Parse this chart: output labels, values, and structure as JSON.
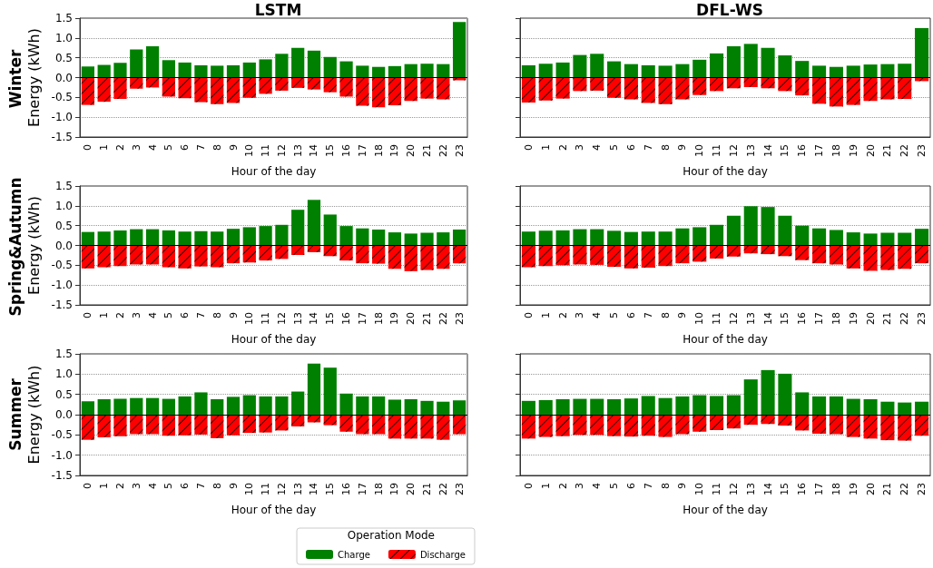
{
  "chart_data": [
    {
      "type": "bar",
      "title": "LSTM",
      "ylabel": "Energy (kWh)",
      "xlabel": "Hour of the day",
      "annotations": [
        "Winter"
      ],
      "stacked": true,
      "grid": "y",
      "categories": [
        "0",
        "1",
        "2",
        "3",
        "4",
        "5",
        "6",
        "7",
        "8",
        "9",
        "10",
        "11",
        "12",
        "13",
        "14",
        "15",
        "16",
        "17",
        "18",
        "19",
        "20",
        "21",
        "22",
        "23"
      ],
      "series": [
        {
          "color": "#008000",
          "values": [
            0.28,
            0.32,
            0.37,
            0.71,
            0.79,
            0.44,
            0.38,
            0.31,
            0.3,
            0.31,
            0.38,
            0.46,
            0.6,
            0.75,
            0.68,
            0.52,
            0.41,
            0.3,
            0.27,
            0.29,
            0.34,
            0.35,
            0.34,
            1.4
          ]
        },
        {
          "color": "#ff0000",
          "values": [
            -0.69,
            -0.61,
            -0.54,
            -0.28,
            -0.25,
            -0.48,
            -0.52,
            -0.62,
            -0.67,
            -0.64,
            -0.51,
            -0.41,
            -0.33,
            -0.26,
            -0.3,
            -0.37,
            -0.48,
            -0.71,
            -0.75,
            -0.7,
            -0.59,
            -0.53,
            -0.55,
            -0.07
          ]
        }
      ],
      "ylim": [
        -1.5,
        1.5
      ],
      "yticks": [
        {
          "value": -1.5,
          "label": "-1.5"
        },
        {
          "value": -1,
          "label": "-1.0"
        },
        {
          "value": -0.5,
          "label": "-0.5"
        },
        {
          "value": 0,
          "label": "0.0"
        },
        {
          "value": 0.5,
          "label": "0.5"
        },
        {
          "value": 1,
          "label": "1.0"
        },
        {
          "value": 1.5,
          "label": "1.5"
        }
      ],
      "ref_lines": [
        {
          "axis": "y",
          "value": 0,
          "color": "#000000"
        }
      ]
    },
    {
      "type": "bar",
      "title": "DFL-WS",
      "xlabel": "Hour of the day",
      "stacked": true,
      "grid": "y",
      "tick_labels": "x",
      "yticks": [
        {
          "value": -1.5,
          "label": null
        },
        {
          "value": -1,
          "label": null
        },
        {
          "value": -0.5,
          "label": null
        },
        {
          "value": 0,
          "label": null
        },
        {
          "value": 0.5,
          "label": null
        },
        {
          "value": 1,
          "label": null
        },
        {
          "value": 1.5,
          "label": null
        }
      ],
      "categories": [
        "0",
        "1",
        "2",
        "3",
        "4",
        "5",
        "6",
        "7",
        "8",
        "9",
        "10",
        "11",
        "12",
        "13",
        "14",
        "15",
        "16",
        "17",
        "18",
        "19",
        "20",
        "21",
        "22",
        "23"
      ],
      "series": [
        {
          "color": "#008000",
          "values": [
            0.31,
            0.35,
            0.38,
            0.57,
            0.6,
            0.41,
            0.34,
            0.31,
            0.3,
            0.34,
            0.45,
            0.61,
            0.79,
            0.85,
            0.75,
            0.56,
            0.42,
            0.3,
            0.27,
            0.3,
            0.33,
            0.34,
            0.35,
            1.25
          ]
        },
        {
          "color": "#ff0000",
          "values": [
            -0.63,
            -0.58,
            -0.53,
            -0.34,
            -0.33,
            -0.51,
            -0.55,
            -0.64,
            -0.67,
            -0.55,
            -0.44,
            -0.34,
            -0.27,
            -0.24,
            -0.27,
            -0.34,
            -0.45,
            -0.66,
            -0.73,
            -0.69,
            -0.59,
            -0.55,
            -0.54,
            -0.09
          ]
        }
      ],
      "ylim": [
        -1.5,
        1.5
      ],
      "ref_lines": [
        {
          "axis": "y",
          "value": 0,
          "color": "#000000"
        }
      ]
    },
    {
      "type": "bar",
      "ylabel": "Energy (kWh)",
      "xlabel": "Hour of the day",
      "annotations": [
        "Spring&Autumn"
      ],
      "stacked": true,
      "grid": "y",
      "categories": [
        "0",
        "1",
        "2",
        "3",
        "4",
        "5",
        "6",
        "7",
        "8",
        "9",
        "10",
        "11",
        "12",
        "13",
        "14",
        "15",
        "16",
        "17",
        "18",
        "19",
        "20",
        "21",
        "22",
        "23"
      ],
      "series": [
        {
          "color": "#008000",
          "values": [
            0.34,
            0.35,
            0.38,
            0.41,
            0.41,
            0.38,
            0.35,
            0.36,
            0.35,
            0.42,
            0.46,
            0.49,
            0.52,
            0.9,
            1.15,
            0.78,
            0.49,
            0.43,
            0.4,
            0.33,
            0.3,
            0.32,
            0.33,
            0.4
          ]
        },
        {
          "color": "#ff0000",
          "values": [
            -0.58,
            -0.55,
            -0.52,
            -0.48,
            -0.48,
            -0.55,
            -0.58,
            -0.53,
            -0.55,
            -0.45,
            -0.43,
            -0.38,
            -0.34,
            -0.24,
            -0.17,
            -0.27,
            -0.38,
            -0.45,
            -0.46,
            -0.59,
            -0.65,
            -0.62,
            -0.59,
            -0.45
          ]
        }
      ],
      "ylim": [
        -1.5,
        1.5
      ],
      "yticks": [
        {
          "value": -1.5,
          "label": "-1.5"
        },
        {
          "value": -1,
          "label": "-1.0"
        },
        {
          "value": -0.5,
          "label": "-0.5"
        },
        {
          "value": 0,
          "label": "0.0"
        },
        {
          "value": 0.5,
          "label": "0.5"
        },
        {
          "value": 1,
          "label": "1.0"
        },
        {
          "value": 1.5,
          "label": "1.5"
        }
      ],
      "ref_lines": [
        {
          "axis": "y",
          "value": 0,
          "color": "#000000"
        }
      ]
    },
    {
      "type": "bar",
      "xlabel": "Hour of the day",
      "stacked": true,
      "grid": "y",
      "tick_labels": "x",
      "yticks": [
        {
          "value": -1.5,
          "label": null
        },
        {
          "value": -1,
          "label": null
        },
        {
          "value": -0.5,
          "label": null
        },
        {
          "value": 0,
          "label": null
        },
        {
          "value": 0.5,
          "label": null
        },
        {
          "value": 1,
          "label": null
        },
        {
          "value": 1.5,
          "label": null
        }
      ],
      "categories": [
        "0",
        "1",
        "2",
        "3",
        "4",
        "5",
        "6",
        "7",
        "8",
        "9",
        "10",
        "11",
        "12",
        "13",
        "14",
        "15",
        "16",
        "17",
        "18",
        "19",
        "20",
        "21",
        "22",
        "23"
      ],
      "series": [
        {
          "color": "#008000",
          "values": [
            0.35,
            0.37,
            0.38,
            0.41,
            0.41,
            0.37,
            0.34,
            0.35,
            0.35,
            0.43,
            0.46,
            0.52,
            0.75,
            0.99,
            0.97,
            0.75,
            0.5,
            0.43,
            0.39,
            0.33,
            0.3,
            0.32,
            0.32,
            0.42
          ]
        },
        {
          "color": "#ff0000",
          "values": [
            -0.55,
            -0.52,
            -0.5,
            -0.48,
            -0.49,
            -0.54,
            -0.58,
            -0.56,
            -0.52,
            -0.45,
            -0.41,
            -0.33,
            -0.28,
            -0.2,
            -0.22,
            -0.27,
            -0.37,
            -0.45,
            -0.48,
            -0.58,
            -0.64,
            -0.62,
            -0.59,
            -0.45
          ]
        }
      ],
      "ylim": [
        -1.5,
        1.5
      ],
      "ref_lines": [
        {
          "axis": "y",
          "value": 0,
          "color": "#000000"
        }
      ]
    },
    {
      "type": "bar",
      "ylabel": "Energy (kWh)",
      "xlabel": "Hour of the day",
      "annotations": [
        "Summer"
      ],
      "stacked": true,
      "grid": "y",
      "legend": "bottom",
      "legend_title": "Operation Mode",
      "categories": [
        "0",
        "1",
        "2",
        "3",
        "4",
        "5",
        "6",
        "7",
        "8",
        "9",
        "10",
        "11",
        "12",
        "13",
        "14",
        "15",
        "16",
        "17",
        "18",
        "19",
        "20",
        "21",
        "22",
        "23"
      ],
      "series": [
        {
          "name": "Charge",
          "color": "#008000",
          "values": [
            0.33,
            0.38,
            0.39,
            0.41,
            0.41,
            0.39,
            0.45,
            0.55,
            0.38,
            0.44,
            0.48,
            0.45,
            0.45,
            0.57,
            1.26,
            1.16,
            0.52,
            0.45,
            0.45,
            0.37,
            0.38,
            0.34,
            0.32,
            0.35
          ]
        },
        {
          "name": "Discharge",
          "color": "#ff0000",
          "values": [
            -0.62,
            -0.56,
            -0.53,
            -0.48,
            -0.48,
            -0.52,
            -0.51,
            -0.49,
            -0.58,
            -0.51,
            -0.45,
            -0.44,
            -0.39,
            -0.29,
            -0.19,
            -0.26,
            -0.42,
            -0.48,
            -0.48,
            -0.59,
            -0.59,
            -0.59,
            -0.62,
            -0.48
          ]
        }
      ],
      "ylim": [
        -1.5,
        1.5
      ],
      "yticks": [
        {
          "value": -1.5,
          "label": "-1.5"
        },
        {
          "value": -1,
          "label": "-1.0"
        },
        {
          "value": -0.5,
          "label": "-0.5"
        },
        {
          "value": 0,
          "label": "0.0"
        },
        {
          "value": 0.5,
          "label": "0.5"
        },
        {
          "value": 1,
          "label": "1.0"
        },
        {
          "value": 1.5,
          "label": "1.5"
        }
      ],
      "ref_lines": [
        {
          "axis": "y",
          "value": 0,
          "color": "#000000"
        }
      ]
    },
    {
      "type": "bar",
      "xlabel": "Hour of the day",
      "stacked": true,
      "grid": "y",
      "tick_labels": "x",
      "yticks": [
        {
          "value": -1.5,
          "label": null
        },
        {
          "value": -1,
          "label": null
        },
        {
          "value": -0.5,
          "label": null
        },
        {
          "value": 0,
          "label": null
        },
        {
          "value": 0.5,
          "label": null
        },
        {
          "value": 1,
          "label": null
        },
        {
          "value": 1.5,
          "label": null
        }
      ],
      "categories": [
        "0",
        "1",
        "2",
        "3",
        "4",
        "5",
        "6",
        "7",
        "8",
        "9",
        "10",
        "11",
        "12",
        "13",
        "14",
        "15",
        "16",
        "17",
        "18",
        "19",
        "20",
        "21",
        "22",
        "23"
      ],
      "series": [
        {
          "color": "#008000",
          "values": [
            0.34,
            0.36,
            0.38,
            0.39,
            0.39,
            0.38,
            0.4,
            0.46,
            0.41,
            0.45,
            0.48,
            0.46,
            0.48,
            0.87,
            1.1,
            1.01,
            0.55,
            0.45,
            0.45,
            0.39,
            0.38,
            0.32,
            0.3,
            0.32
          ]
        },
        {
          "color": "#ff0000",
          "values": [
            -0.59,
            -0.55,
            -0.53,
            -0.5,
            -0.5,
            -0.53,
            -0.54,
            -0.52,
            -0.55,
            -0.48,
            -0.42,
            -0.38,
            -0.34,
            -0.25,
            -0.23,
            -0.27,
            -0.39,
            -0.47,
            -0.48,
            -0.55,
            -0.59,
            -0.63,
            -0.64,
            -0.52
          ]
        }
      ],
      "ylim": [
        -1.5,
        1.5
      ],
      "ref_lines": [
        {
          "axis": "y",
          "value": 0,
          "color": "#000000"
        }
      ]
    }
  ]
}
